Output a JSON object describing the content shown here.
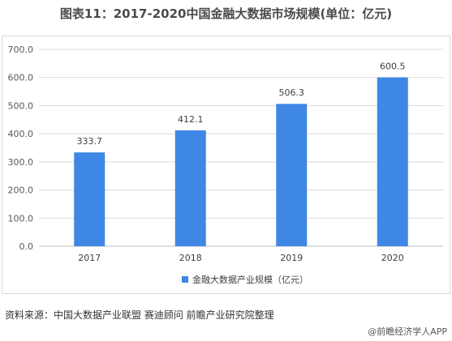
{
  "title": "图表11：2017-2020中国金融大数据市场规模(单位：亿元)",
  "source": "资料来源：中国大数据产业联盟 赛迪顾问 前瞻产业研究院整理",
  "brand": "@前瞻经济学人APP",
  "chart_data": {
    "type": "bar",
    "categories": [
      "2017",
      "2018",
      "2019",
      "2020"
    ],
    "series": [
      {
        "name": "金融大数据产业规模（亿元）",
        "values": [
          333.7,
          412.1,
          506.3,
          600.5
        ],
        "color": "#3f87e4"
      }
    ],
    "data_labels": [
      "333.7",
      "412.1",
      "506.3",
      "600.5"
    ],
    "y_ticks": [
      "0.0",
      "100.0",
      "200.0",
      "300.0",
      "400.0",
      "500.0",
      "600.0",
      "700.0"
    ],
    "ylim": [
      0,
      700
    ],
    "grid": true,
    "legend_position": "bottom"
  }
}
